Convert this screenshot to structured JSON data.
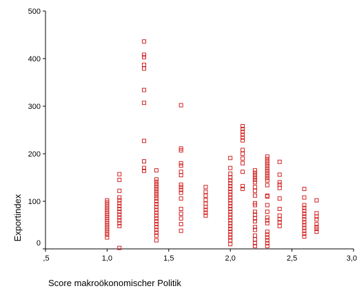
{
  "chart_data": {
    "type": "scatter",
    "xlabel": "Score makroökonomischer Politik",
    "ylabel": "Exportindex",
    "xlim": [
      0.5,
      3.0
    ],
    "ylim": [
      0,
      500
    ],
    "x_tick_labels": [
      ",5",
      "1,0",
      "1,5",
      "2,0",
      "2,5",
      "3,0"
    ],
    "x_tick_values": [
      0.5,
      1.0,
      1.5,
      2.0,
      2.5,
      3.0
    ],
    "y_tick_labels": [
      "0",
      "100",
      "200",
      "300",
      "400",
      "500"
    ],
    "y_tick_values": [
      0,
      100,
      200,
      300,
      400,
      500
    ],
    "grid": false,
    "marker_color": "#d22020",
    "marker": "hollow-square",
    "points": [
      [
        1.0,
        102
      ],
      [
        1.0,
        98
      ],
      [
        1.0,
        94
      ],
      [
        1.0,
        90
      ],
      [
        1.0,
        86
      ],
      [
        1.0,
        82
      ],
      [
        1.0,
        78
      ],
      [
        1.0,
        74
      ],
      [
        1.0,
        70
      ],
      [
        1.0,
        66
      ],
      [
        1.0,
        62
      ],
      [
        1.0,
        58
      ],
      [
        1.0,
        54
      ],
      [
        1.0,
        50
      ],
      [
        1.0,
        46
      ],
      [
        1.0,
        42
      ],
      [
        1.0,
        38
      ],
      [
        1.0,
        34
      ],
      [
        1.0,
        30
      ],
      [
        1.0,
        24
      ],
      [
        1.1,
        157
      ],
      [
        1.1,
        145
      ],
      [
        1.1,
        122
      ],
      [
        1.1,
        108
      ],
      [
        1.1,
        102
      ],
      [
        1.1,
        96
      ],
      [
        1.1,
        90
      ],
      [
        1.1,
        84
      ],
      [
        1.1,
        78
      ],
      [
        1.1,
        72
      ],
      [
        1.1,
        66
      ],
      [
        1.1,
        60
      ],
      [
        1.1,
        54
      ],
      [
        1.1,
        48
      ],
      [
        1.1,
        2
      ],
      [
        1.3,
        436
      ],
      [
        1.3,
        408
      ],
      [
        1.3,
        403
      ],
      [
        1.3,
        387
      ],
      [
        1.3,
        379
      ],
      [
        1.3,
        334
      ],
      [
        1.3,
        307
      ],
      [
        1.3,
        227
      ],
      [
        1.3,
        184
      ],
      [
        1.3,
        170
      ],
      [
        1.3,
        164
      ],
      [
        1.4,
        165
      ],
      [
        1.4,
        146
      ],
      [
        1.4,
        141
      ],
      [
        1.4,
        136
      ],
      [
        1.4,
        131
      ],
      [
        1.4,
        126
      ],
      [
        1.4,
        121
      ],
      [
        1.4,
        116
      ],
      [
        1.4,
        111
      ],
      [
        1.4,
        106
      ],
      [
        1.4,
        100
      ],
      [
        1.4,
        94
      ],
      [
        1.4,
        88
      ],
      [
        1.4,
        82
      ],
      [
        1.4,
        76
      ],
      [
        1.4,
        70
      ],
      [
        1.4,
        64
      ],
      [
        1.4,
        58
      ],
      [
        1.4,
        52
      ],
      [
        1.4,
        46
      ],
      [
        1.4,
        40
      ],
      [
        1.4,
        34
      ],
      [
        1.4,
        28
      ],
      [
        1.4,
        18
      ],
      [
        1.6,
        302
      ],
      [
        1.6,
        211
      ],
      [
        1.6,
        207
      ],
      [
        1.6,
        180
      ],
      [
        1.6,
        175
      ],
      [
        1.6,
        162
      ],
      [
        1.6,
        155
      ],
      [
        1.6,
        135
      ],
      [
        1.6,
        130
      ],
      [
        1.6,
        124
      ],
      [
        1.6,
        118
      ],
      [
        1.6,
        106
      ],
      [
        1.6,
        84
      ],
      [
        1.6,
        74
      ],
      [
        1.6,
        64
      ],
      [
        1.6,
        52
      ],
      [
        1.6,
        38
      ],
      [
        1.8,
        130
      ],
      [
        1.8,
        120
      ],
      [
        1.8,
        112
      ],
      [
        1.8,
        103
      ],
      [
        1.8,
        95
      ],
      [
        1.8,
        88
      ],
      [
        1.8,
        82
      ],
      [
        1.8,
        76
      ],
      [
        1.8,
        70
      ],
      [
        2.0,
        191
      ],
      [
        2.0,
        170
      ],
      [
        2.0,
        158
      ],
      [
        2.0,
        150
      ],
      [
        2.0,
        144
      ],
      [
        2.0,
        138
      ],
      [
        2.0,
        132
      ],
      [
        2.0,
        126
      ],
      [
        2.0,
        120
      ],
      [
        2.0,
        114
      ],
      [
        2.0,
        108
      ],
      [
        2.0,
        102
      ],
      [
        2.0,
        96
      ],
      [
        2.0,
        90
      ],
      [
        2.0,
        84
      ],
      [
        2.0,
        78
      ],
      [
        2.0,
        72
      ],
      [
        2.0,
        66
      ],
      [
        2.0,
        60
      ],
      [
        2.0,
        54
      ],
      [
        2.0,
        48
      ],
      [
        2.0,
        42
      ],
      [
        2.0,
        36
      ],
      [
        2.0,
        30
      ],
      [
        2.0,
        24
      ],
      [
        2.0,
        18
      ],
      [
        2.0,
        10
      ],
      [
        2.1,
        258
      ],
      [
        2.1,
        252
      ],
      [
        2.1,
        246
      ],
      [
        2.1,
        240
      ],
      [
        2.1,
        234
      ],
      [
        2.1,
        228
      ],
      [
        2.1,
        208
      ],
      [
        2.1,
        200
      ],
      [
        2.1,
        190
      ],
      [
        2.1,
        180
      ],
      [
        2.1,
        162
      ],
      [
        2.1,
        132
      ],
      [
        2.1,
        126
      ],
      [
        2.2,
        165
      ],
      [
        2.2,
        160
      ],
      [
        2.2,
        155
      ],
      [
        2.2,
        150
      ],
      [
        2.2,
        145
      ],
      [
        2.2,
        140
      ],
      [
        2.2,
        130
      ],
      [
        2.2,
        122
      ],
      [
        2.2,
        112
      ],
      [
        2.2,
        96
      ],
      [
        2.2,
        92
      ],
      [
        2.2,
        78
      ],
      [
        2.2,
        72
      ],
      [
        2.2,
        64
      ],
      [
        2.2,
        58
      ],
      [
        2.2,
        46
      ],
      [
        2.2,
        40
      ],
      [
        2.2,
        28
      ],
      [
        2.2,
        20
      ],
      [
        2.2,
        12
      ],
      [
        2.2,
        6
      ],
      [
        2.3,
        194
      ],
      [
        2.3,
        189
      ],
      [
        2.3,
        184
      ],
      [
        2.3,
        179
      ],
      [
        2.3,
        174
      ],
      [
        2.3,
        169
      ],
      [
        2.3,
        164
      ],
      [
        2.3,
        159
      ],
      [
        2.3,
        154
      ],
      [
        2.3,
        149
      ],
      [
        2.3,
        144
      ],
      [
        2.3,
        134
      ],
      [
        2.3,
        112
      ],
      [
        2.3,
        110
      ],
      [
        2.3,
        92
      ],
      [
        2.3,
        78
      ],
      [
        2.3,
        66
      ],
      [
        2.3,
        60
      ],
      [
        2.3,
        54
      ],
      [
        2.3,
        36
      ],
      [
        2.3,
        30
      ],
      [
        2.3,
        24
      ],
      [
        2.3,
        18
      ],
      [
        2.3,
        12
      ],
      [
        2.3,
        6
      ],
      [
        2.4,
        183
      ],
      [
        2.4,
        156
      ],
      [
        2.4,
        140
      ],
      [
        2.4,
        135
      ],
      [
        2.4,
        128
      ],
      [
        2.4,
        106
      ],
      [
        2.4,
        84
      ],
      [
        2.4,
        70
      ],
      [
        2.4,
        62
      ],
      [
        2.4,
        56
      ],
      [
        2.4,
        48
      ],
      [
        2.6,
        126
      ],
      [
        2.6,
        108
      ],
      [
        2.6,
        92
      ],
      [
        2.6,
        86
      ],
      [
        2.6,
        80
      ],
      [
        2.6,
        74
      ],
      [
        2.6,
        68
      ],
      [
        2.6,
        62
      ],
      [
        2.6,
        56
      ],
      [
        2.6,
        50
      ],
      [
        2.6,
        44
      ],
      [
        2.6,
        38
      ],
      [
        2.6,
        32
      ],
      [
        2.6,
        26
      ],
      [
        2.7,
        102
      ],
      [
        2.7,
        75
      ],
      [
        2.7,
        68
      ],
      [
        2.7,
        62
      ],
      [
        2.7,
        52
      ],
      [
        2.7,
        46
      ],
      [
        2.7,
        42
      ],
      [
        2.7,
        36
      ]
    ]
  }
}
